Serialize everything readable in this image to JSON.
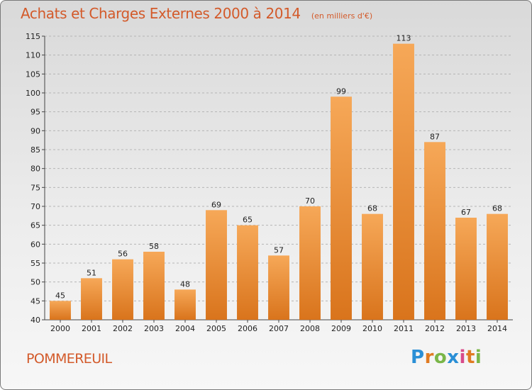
{
  "title": "Achats et Charges Externes 2000 à 2014",
  "subtitle": "(en milliers d'€)",
  "commune": "POMMEREUIL",
  "logo": {
    "text": "Proxiti",
    "letters": [
      {
        "char": "P",
        "color": "#2a8fd6"
      },
      {
        "char": "r",
        "color": "#e07b22"
      },
      {
        "char": "o",
        "color": "#7ab648"
      },
      {
        "char": "x",
        "color": "#2a8fd6"
      },
      {
        "char": "i",
        "color": "#d94b8a"
      },
      {
        "char": "t",
        "color": "#e07b22"
      },
      {
        "char": "i",
        "color": "#7ab648"
      }
    ]
  },
  "colors": {
    "accent": "#d35a2a",
    "bar_light": "#f6a858",
    "bar_dark": "#d9741c",
    "grid": "#b5b5b5"
  },
  "chart_data": {
    "type": "bar",
    "title": "Achats et Charges Externes 2000 à 2014",
    "subtitle": "(en milliers d'€)",
    "xlabel": "",
    "ylabel": "",
    "categories": [
      "2000",
      "2001",
      "2002",
      "2003",
      "2004",
      "2005",
      "2006",
      "2007",
      "2008",
      "2009",
      "2010",
      "2011",
      "2012",
      "2013",
      "2014"
    ],
    "values": [
      45,
      51,
      56,
      58,
      48,
      69,
      65,
      57,
      70,
      99,
      68,
      113,
      87,
      67,
      68
    ],
    "ylim": [
      40,
      115
    ],
    "yticks": [
      40,
      45,
      50,
      55,
      60,
      65,
      70,
      75,
      80,
      85,
      90,
      95,
      100,
      105,
      110,
      115
    ],
    "grid": "horizontal dashed",
    "legend": "none"
  }
}
